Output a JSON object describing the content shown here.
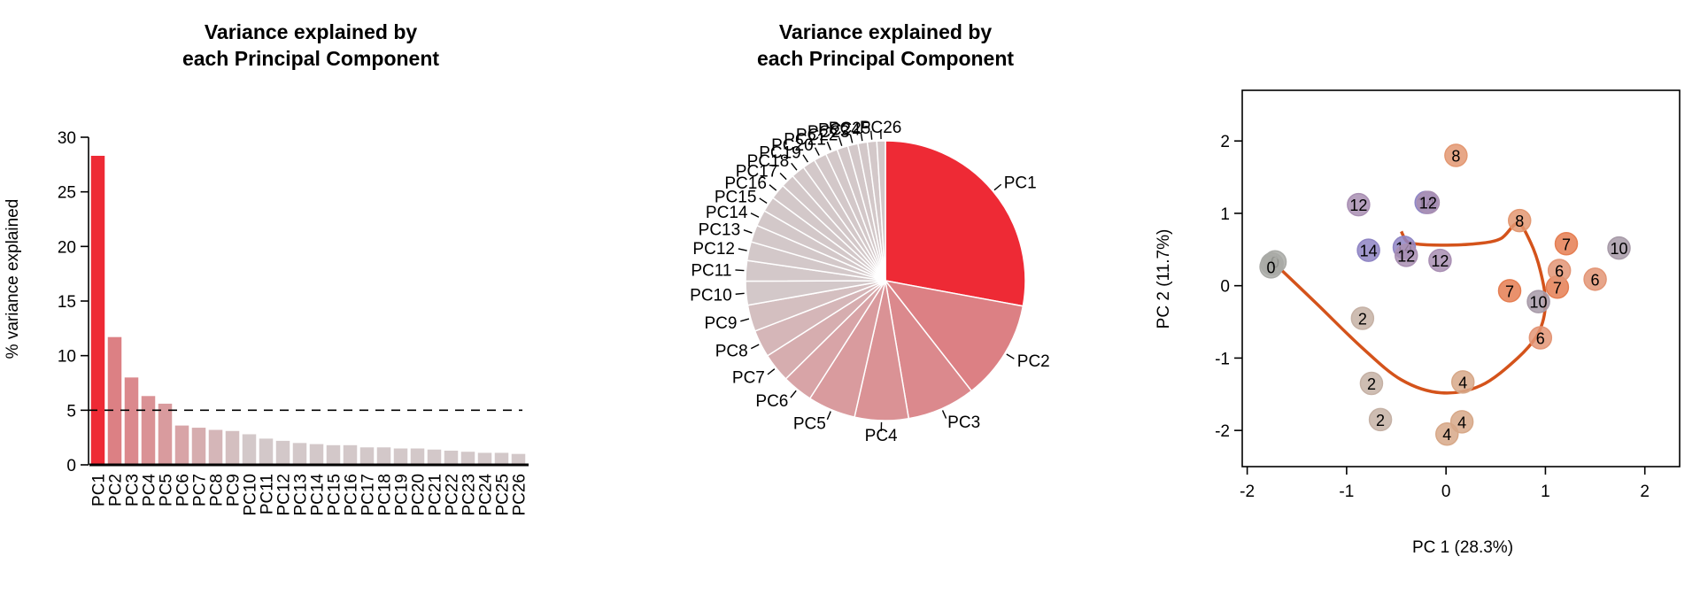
{
  "chart_data": [
    {
      "type": "bar",
      "title_lines": [
        "Variance explained by",
        "each Principal Component"
      ],
      "xlabel": "",
      "ylabel": "% variance explained",
      "ylim": [
        0,
        30
      ],
      "yticks": [
        0,
        5,
        10,
        15,
        20,
        25,
        30
      ],
      "reference_line": 5,
      "categories": [
        "PC1",
        "PC2",
        "PC3",
        "PC4",
        "PC5",
        "PC6",
        "PC7",
        "PC8",
        "PC9",
        "PC10",
        "PC11",
        "PC12",
        "PC13",
        "PC14",
        "PC15",
        "PC16",
        "PC17",
        "PC18",
        "PC19",
        "PC20",
        "PC21",
        "PC22",
        "PC23",
        "PC24",
        "PC25",
        "PC26"
      ],
      "values": [
        28.3,
        11.7,
        8.0,
        6.3,
        5.6,
        3.6,
        3.4,
        3.2,
        3.1,
        2.8,
        2.4,
        2.2,
        2.0,
        1.9,
        1.8,
        1.8,
        1.6,
        1.6,
        1.5,
        1.5,
        1.4,
        1.3,
        1.2,
        1.1,
        1.1,
        1.0
      ],
      "colors": {
        "highlight": "#ee2a35",
        "fade": "#d3c8c9"
      }
    },
    {
      "type": "pie",
      "title_lines": [
        "Variance explained by",
        "each Principal Component"
      ],
      "categories": [
        "PC1",
        "PC2",
        "PC3",
        "PC4",
        "PC5",
        "PC6",
        "PC7",
        "PC8",
        "PC9",
        "PC10",
        "PC11",
        "PC12",
        "PC13",
        "PC14",
        "PC15",
        "PC16",
        "PC17",
        "PC18",
        "PC19",
        "PC20",
        "PC21",
        "PC22",
        "PC23",
        "PC24",
        "PC25",
        "PC26"
      ],
      "values": [
        28.3,
        11.7,
        8.0,
        6.3,
        5.6,
        3.6,
        3.4,
        3.2,
        3.1,
        2.8,
        2.4,
        2.2,
        2.0,
        1.9,
        1.8,
        1.8,
        1.6,
        1.6,
        1.5,
        1.5,
        1.4,
        1.3,
        1.2,
        1.1,
        1.1,
        1.0
      ],
      "colors": {
        "highlight": "#ee2a35",
        "fade": "#d3c8c9"
      }
    },
    {
      "type": "scatter",
      "title": "",
      "xlabel": "PC 1 (28.3%)",
      "ylabel": "PC 2 (11.7%)",
      "xlim": [
        -2.05,
        2.35
      ],
      "ylim": [
        -2.5,
        2.7
      ],
      "xticks": [
        -2,
        -1,
        0,
        1,
        2
      ],
      "yticks": [
        -2,
        -1,
        0,
        1,
        2
      ],
      "points": [
        {
          "x": -1.75,
          "y": 0.3,
          "label": "0",
          "color": "#a9aaa6"
        },
        {
          "x": -1.72,
          "y": 0.33,
          "label": "0",
          "color": "#a9aaa6"
        },
        {
          "x": -1.76,
          "y": 0.26,
          "label": "0",
          "color": "#a9aaa6"
        },
        {
          "x": -0.88,
          "y": 1.12,
          "label": "12",
          "color": "#a98fb3"
        },
        {
          "x": -0.2,
          "y": 1.15,
          "label": "14",
          "color": "#8f85c4"
        },
        {
          "x": -0.18,
          "y": 1.15,
          "label": "12",
          "color": "#a98fb3"
        },
        {
          "x": -0.78,
          "y": 0.49,
          "label": "14",
          "color": "#8f85c4"
        },
        {
          "x": -0.42,
          "y": 0.53,
          "label": "14",
          "color": "#8f85c4"
        },
        {
          "x": -0.4,
          "y": 0.42,
          "label": "12",
          "color": "#a98fb3"
        },
        {
          "x": -0.06,
          "y": 0.35,
          "label": "12",
          "color": "#a98fb3"
        },
        {
          "x": 0.1,
          "y": 1.8,
          "label": "8",
          "color": "#e39872"
        },
        {
          "x": 0.74,
          "y": 0.9,
          "label": "8",
          "color": "#e39872"
        },
        {
          "x": -0.84,
          "y": -0.45,
          "label": "2",
          "color": "#c5b1a5"
        },
        {
          "x": -0.75,
          "y": -1.35,
          "label": "2",
          "color": "#c5b1a5"
        },
        {
          "x": -0.66,
          "y": -1.85,
          "label": "2",
          "color": "#c5b1a5"
        },
        {
          "x": 0.17,
          "y": -1.33,
          "label": "4",
          "color": "#d7a888"
        },
        {
          "x": 0.16,
          "y": -1.88,
          "label": "4",
          "color": "#d7a888"
        },
        {
          "x": 0.01,
          "y": -2.05,
          "label": "4",
          "color": "#d7a888"
        },
        {
          "x": 1.21,
          "y": 0.58,
          "label": "7",
          "color": "#e57e52"
        },
        {
          "x": 0.64,
          "y": -0.07,
          "label": "7",
          "color": "#e57e52"
        },
        {
          "x": 1.12,
          "y": -0.02,
          "label": "7",
          "color": "#e57e52"
        },
        {
          "x": 1.14,
          "y": 0.21,
          "label": "6",
          "color": "#e39575"
        },
        {
          "x": 1.5,
          "y": 0.09,
          "label": "6",
          "color": "#e39575"
        },
        {
          "x": 0.95,
          "y": -0.72,
          "label": "6",
          "color": "#e39575"
        },
        {
          "x": 1.74,
          "y": 0.52,
          "label": "10",
          "color": "#a79aa8"
        },
        {
          "x": 0.93,
          "y": -0.22,
          "label": "10",
          "color": "#a79aa8"
        }
      ],
      "trajectory": [
        [
          -1.72,
          0.3
        ],
        [
          -1.3,
          -0.25
        ],
        [
          -0.85,
          -0.85
        ],
        [
          -0.45,
          -1.3
        ],
        [
          -0.05,
          -1.48
        ],
        [
          0.35,
          -1.38
        ],
        [
          0.72,
          -1.0
        ],
        [
          0.93,
          -0.65
        ],
        [
          1.0,
          -0.25
        ],
        [
          0.95,
          0.2
        ],
        [
          0.85,
          0.6
        ],
        [
          0.72,
          0.86
        ],
        [
          0.55,
          0.65
        ],
        [
          0.3,
          0.58
        ],
        [
          -0.05,
          0.56
        ],
        [
          -0.32,
          0.58
        ],
        [
          -0.4,
          0.62
        ],
        [
          -0.45,
          0.75
        ]
      ],
      "trajectory_color": "#d4531b"
    }
  ]
}
